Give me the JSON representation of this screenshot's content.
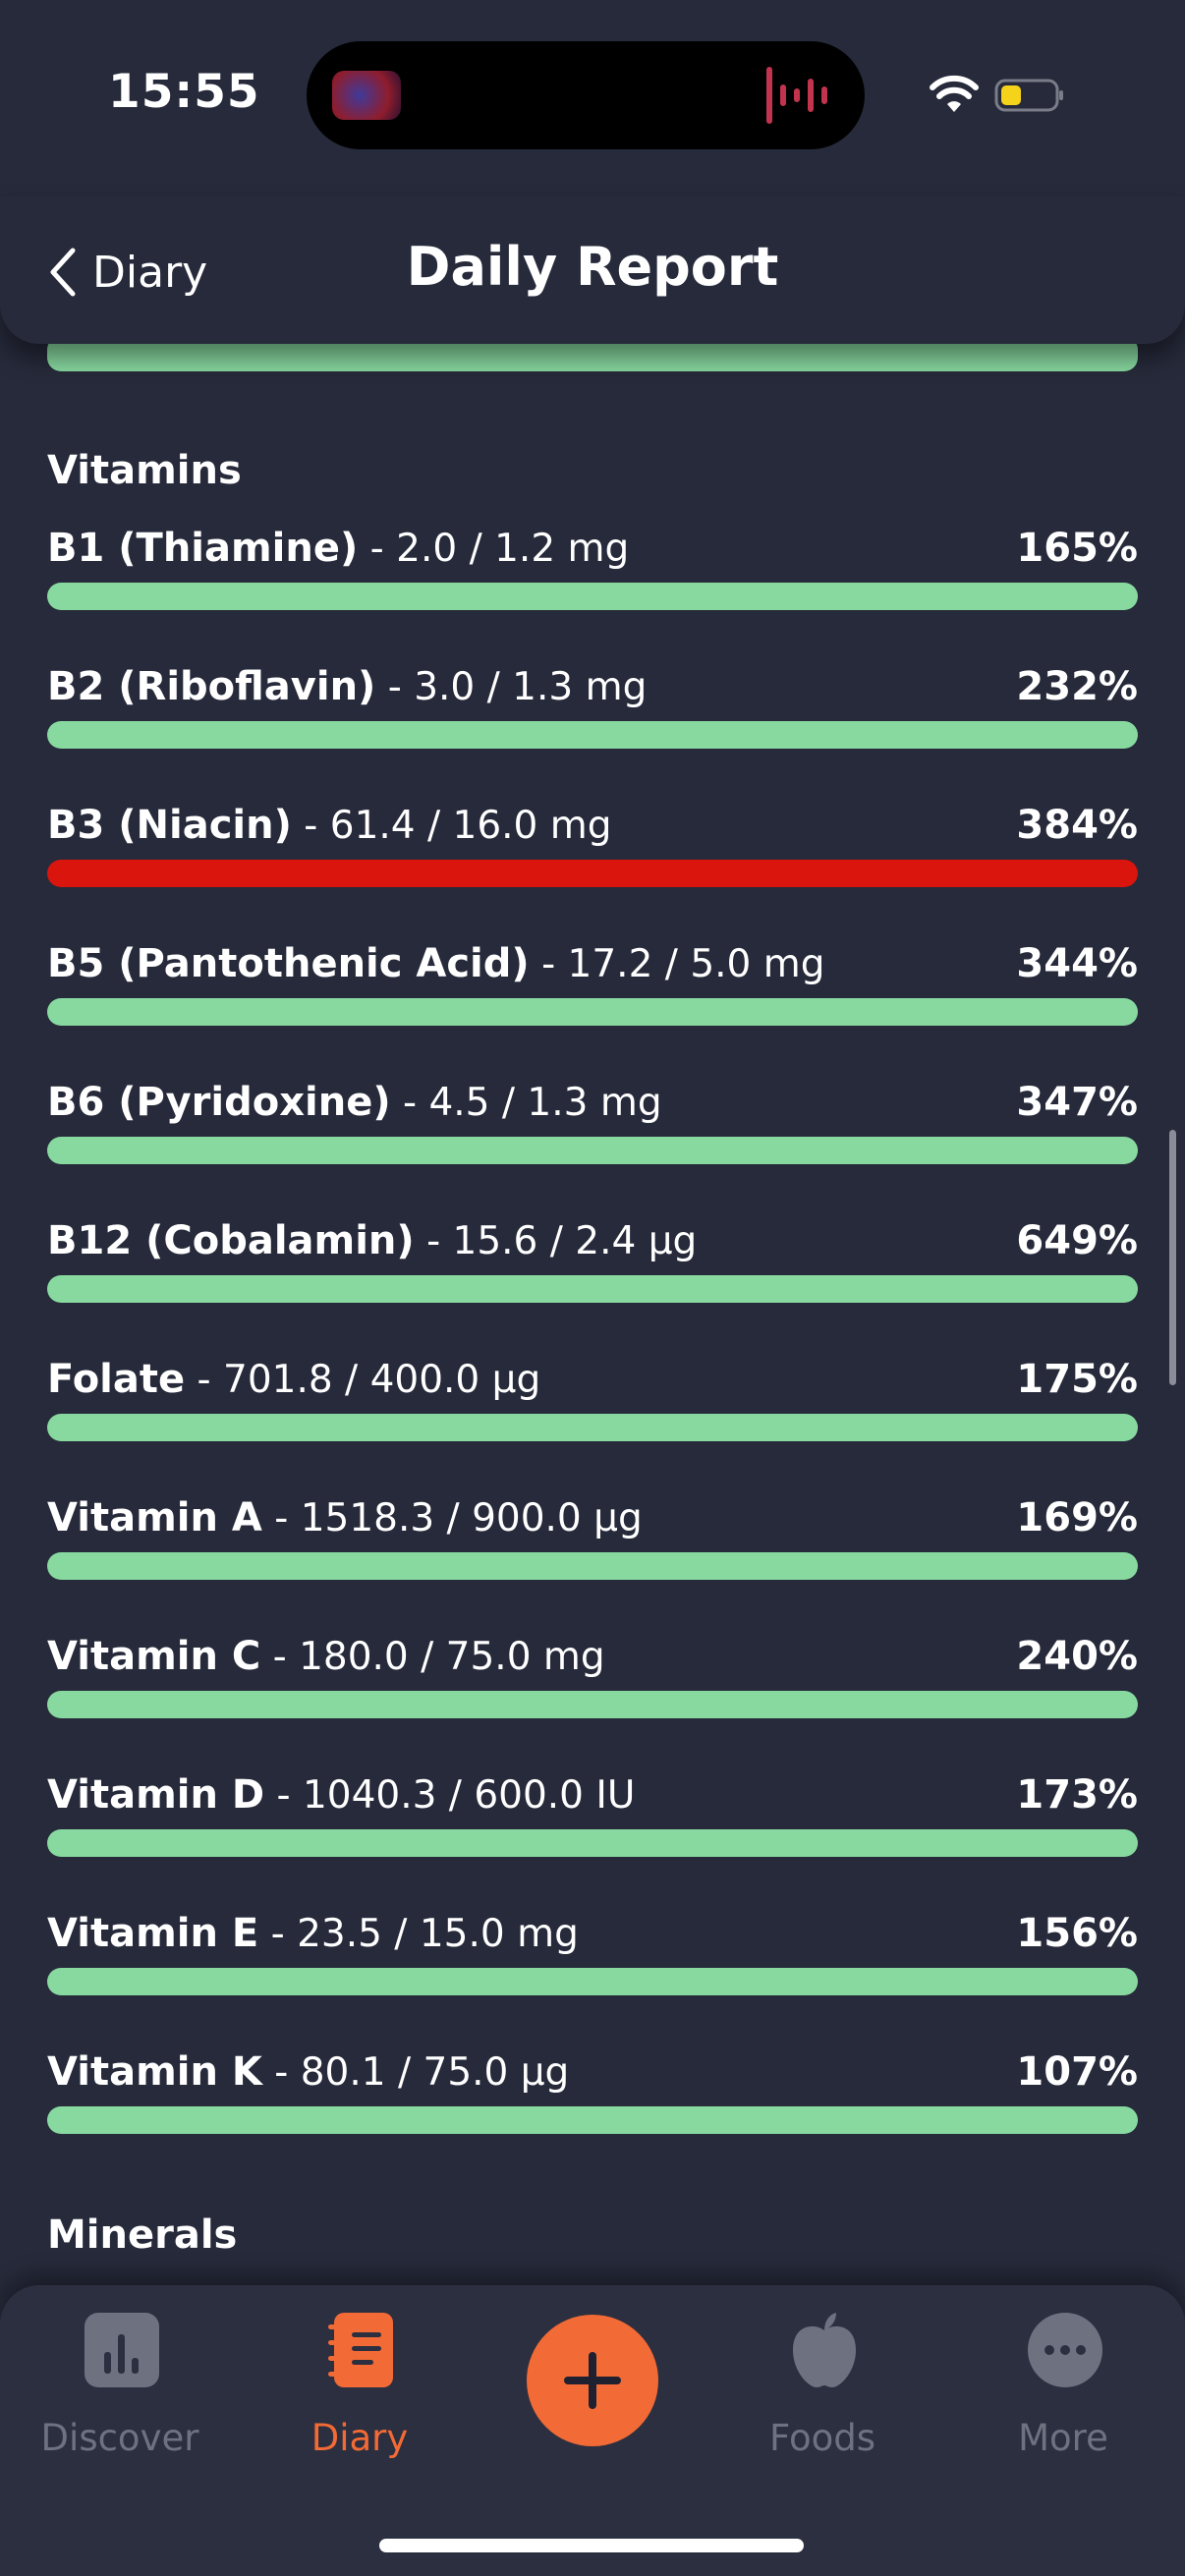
{
  "status_bar": {
    "time": "15:55"
  },
  "header": {
    "back_label": "Diary",
    "title": "Daily Report"
  },
  "colors": {
    "ok": "#88d9a0",
    "over": "#d9150d",
    "accent": "#f26a35"
  },
  "vitamins": {
    "title": "Vitamins",
    "items": [
      {
        "name": "B1 (Thiamine)",
        "amount": " - 2.0 / 1.2 mg",
        "pct": "165%"
      },
      {
        "name": "B2 (Riboflavin)",
        "amount": " - 3.0 / 1.3 mg",
        "pct": "232%"
      },
      {
        "name": "B3 (Niacin)",
        "amount": " - 61.4 / 16.0 mg",
        "pct": "384%"
      },
      {
        "name": "B5 (Pantothenic Acid)",
        "amount": " - 17.2 / 5.0 mg",
        "pct": "344%"
      },
      {
        "name": "B6 (Pyridoxine)",
        "amount": " - 4.5 / 1.3 mg",
        "pct": "347%"
      },
      {
        "name": "B12 (Cobalamin)",
        "amount": " - 15.6 / 2.4 µg",
        "pct": "649%"
      },
      {
        "name": "Folate",
        "amount": " - 701.8 / 400.0 µg",
        "pct": "175%"
      },
      {
        "name": "Vitamin A",
        "amount": " - 1518.3 / 900.0 µg",
        "pct": "169%"
      },
      {
        "name": "Vitamin C",
        "amount": " - 180.0 / 75.0 mg",
        "pct": "240%"
      },
      {
        "name": "Vitamin D",
        "amount": " - 1040.3 / 600.0 IU",
        "pct": "173%"
      },
      {
        "name": "Vitamin E",
        "amount": " - 23.5 / 15.0 mg",
        "pct": "156%"
      },
      {
        "name": "Vitamin K",
        "amount": " - 80.1 / 75.0 µg",
        "pct": "107%"
      }
    ]
  },
  "minerals": {
    "title": "Minerals"
  },
  "tabbar": {
    "discover": "Discover",
    "diary": "Diary",
    "foods": "Foods",
    "more": "More"
  }
}
